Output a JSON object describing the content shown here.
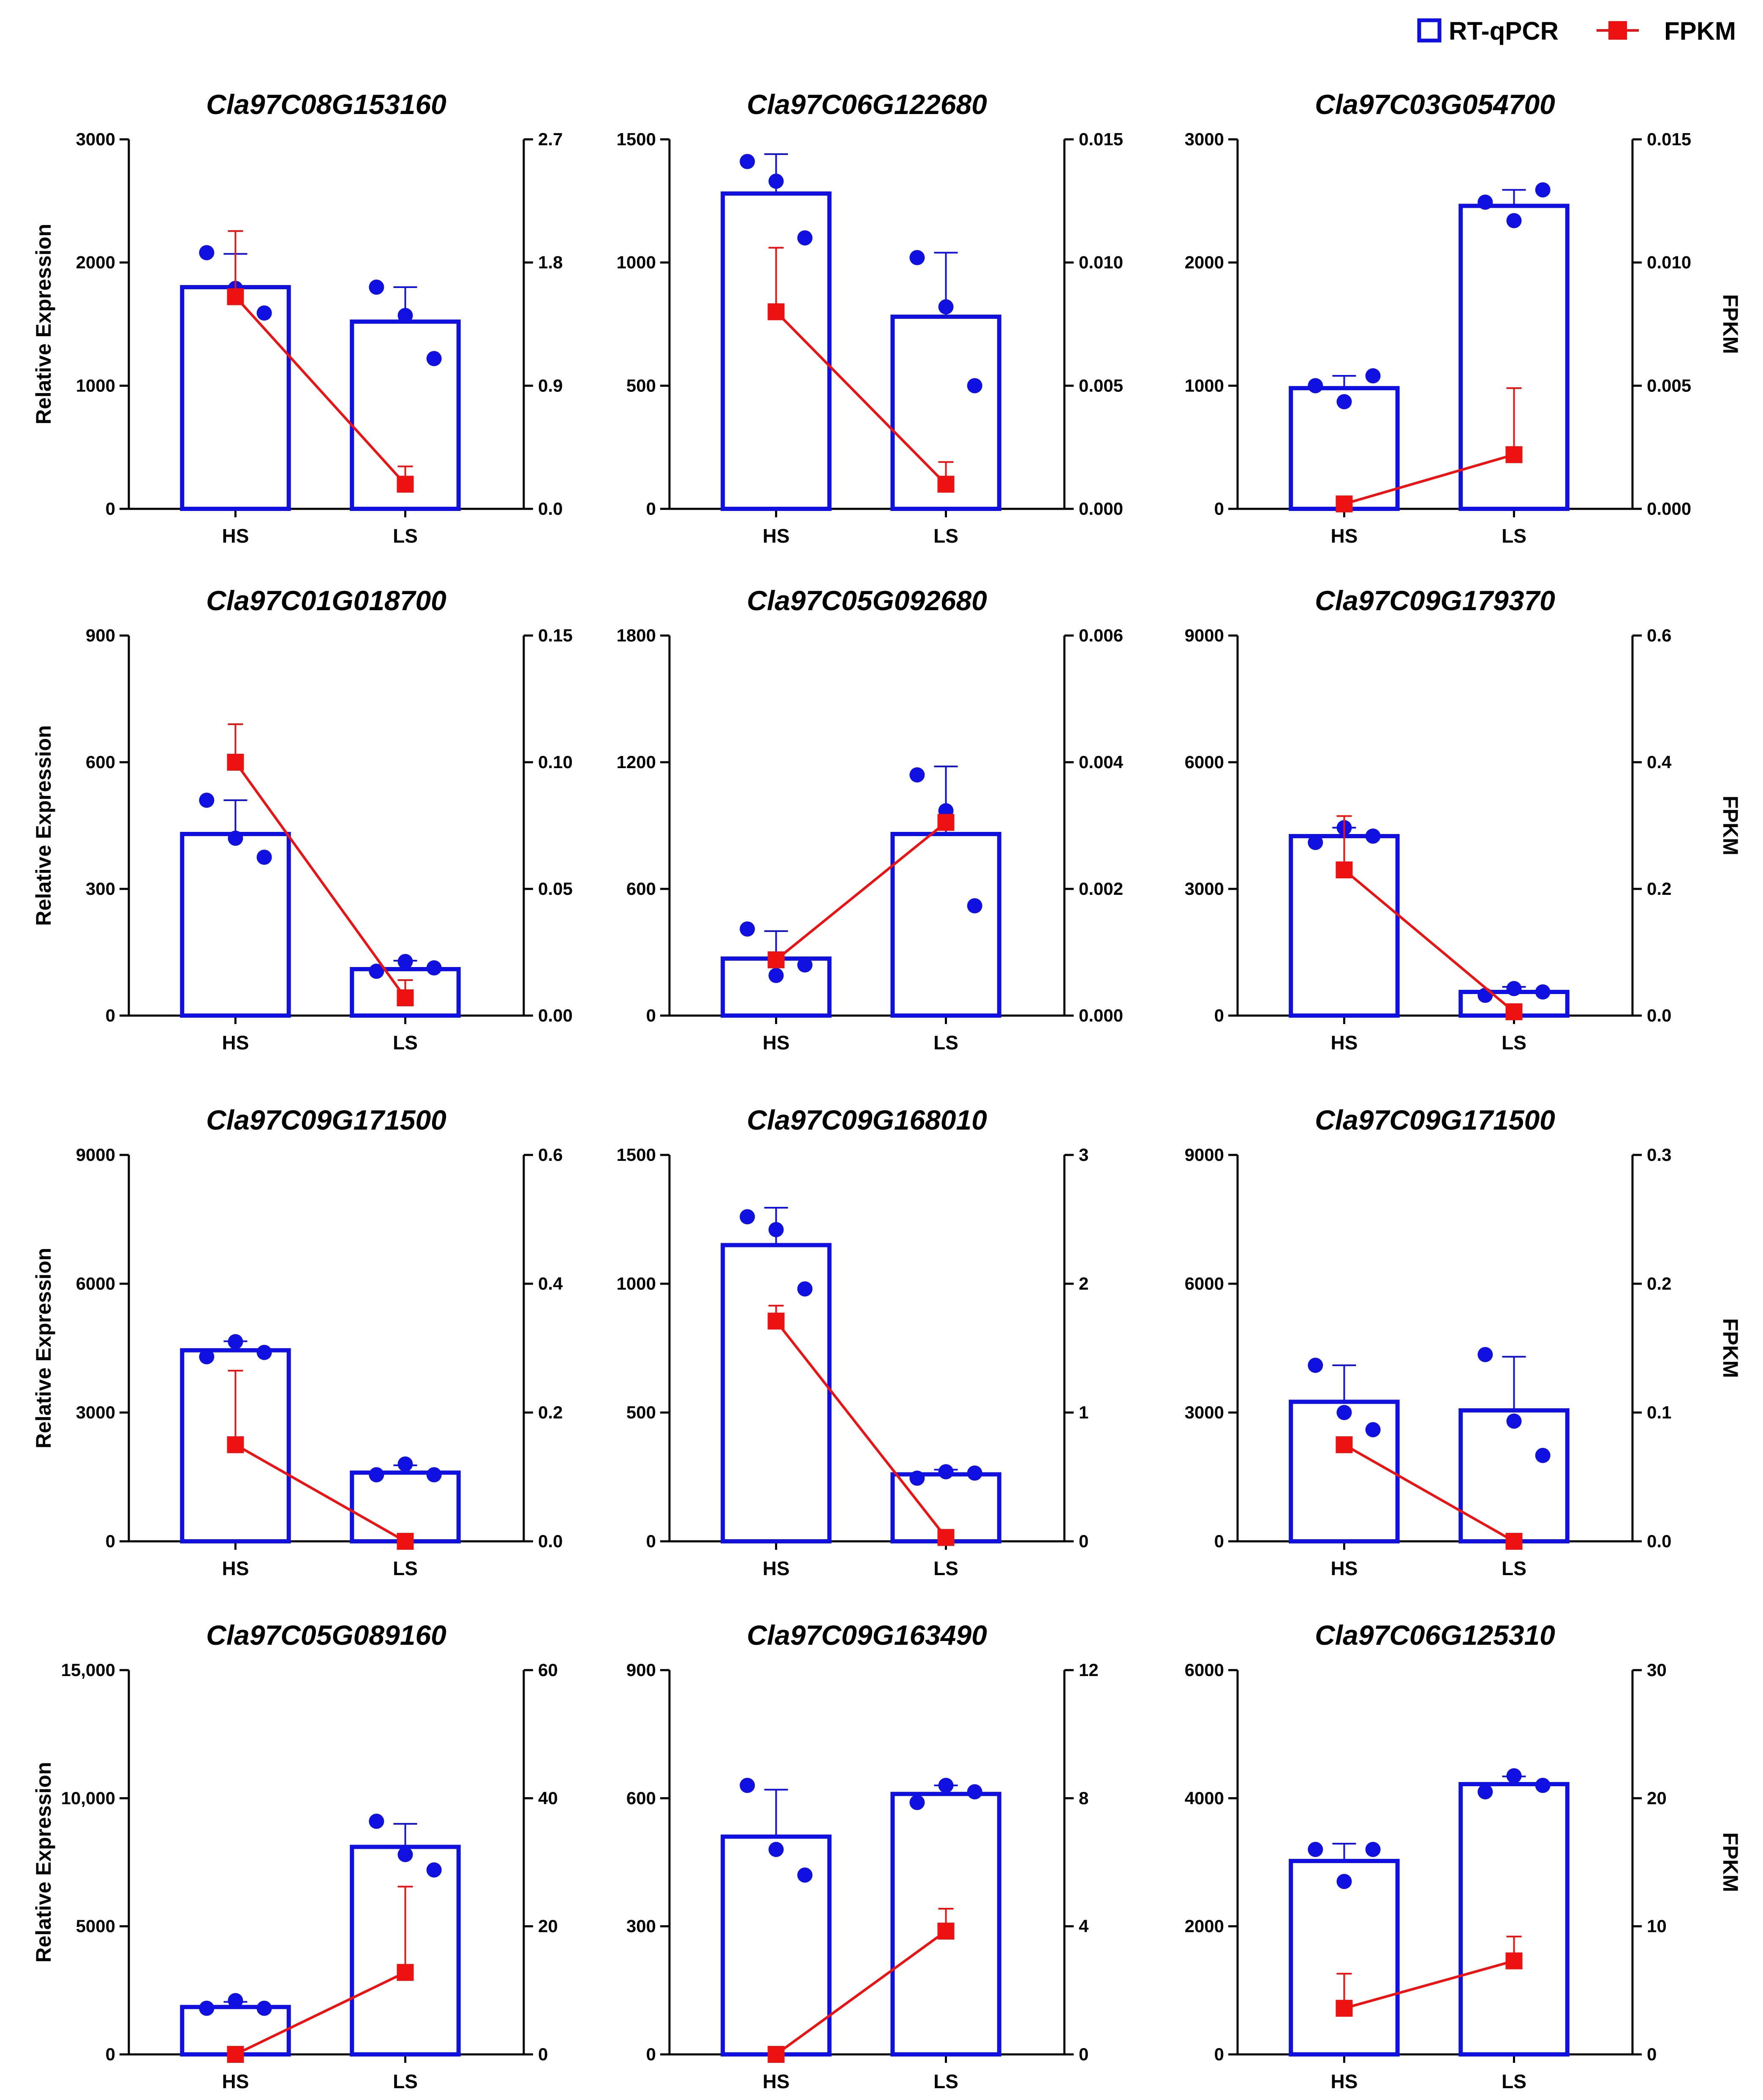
{
  "legend": {
    "rt_label": "RT-qPCR",
    "fpkm_label": "FPKM"
  },
  "colors": {
    "bar": "#1010e0",
    "line": "#ee1111",
    "axis": "#000000"
  },
  "chart_data": [
    {
      "type": "bar",
      "title": "Cla97C08G153160",
      "categories": [
        "HS",
        "LS"
      ],
      "ylabel": "Relative Expression",
      "y2label": "",
      "ylim": [
        0,
        3000
      ],
      "yticks": [
        "0",
        "1000",
        "2000",
        "3000"
      ],
      "y2lim": [
        0,
        2.7
      ],
      "y2ticks": [
        "0.0",
        "0.9",
        "1.8",
        "2.7"
      ],
      "series": [
        {
          "name": "RT-qPCR",
          "values": [
            1800,
            1520
          ],
          "err": [
            270,
            280
          ],
          "points": [
            [
              2080,
              1790,
              1590
            ],
            [
              1800,
              1570,
              1220
            ]
          ]
        },
        {
          "name": "FPKM",
          "values": [
            1.55,
            0.18
          ],
          "err": [
            0.48,
            0.13
          ]
        }
      ]
    },
    {
      "type": "bar",
      "title": "Cla97C06G122680",
      "categories": [
        "HS",
        "LS"
      ],
      "ylabel": "",
      "y2label": "",
      "ylim": [
        0,
        1500
      ],
      "yticks": [
        "0",
        "500",
        "1000",
        "1500"
      ],
      "y2lim": [
        0,
        0.015
      ],
      "y2ticks": [
        "0.000",
        "0.005",
        "0.010",
        "0.015"
      ],
      "series": [
        {
          "name": "RT-qPCR",
          "values": [
            1280,
            780
          ],
          "err": [
            160,
            260
          ],
          "points": [
            [
              1410,
              1330,
              1100
            ],
            [
              1020,
              820,
              500
            ]
          ]
        },
        {
          "name": "FPKM",
          "values": [
            0.008,
            0.001
          ],
          "err": [
            0.0026,
            0.0009
          ]
        }
      ]
    },
    {
      "type": "bar",
      "title": "Cla97C03G054700",
      "categories": [
        "HS",
        "LS"
      ],
      "ylabel": "",
      "y2label": "FPKM",
      "ylim": [
        0,
        3000
      ],
      "yticks": [
        "0",
        "1000",
        "2000",
        "3000"
      ],
      "y2lim": [
        0,
        0.015
      ],
      "y2ticks": [
        "0.000",
        "0.005",
        "0.010",
        "0.015"
      ],
      "series": [
        {
          "name": "RT-qPCR",
          "values": [
            980,
            2460
          ],
          "err": [
            100,
            130
          ],
          "points": [
            [
              1000,
              870,
              1080
            ],
            [
              2490,
              2340,
              2590
            ]
          ]
        },
        {
          "name": "FPKM",
          "values": [
            0.0002,
            0.0022
          ],
          "err": [
            0.0003,
            0.0027
          ]
        }
      ]
    },
    {
      "type": "bar",
      "title": "Cla97C01G018700",
      "categories": [
        "HS",
        "LS"
      ],
      "ylabel": "Relative Expression",
      "y2label": "",
      "ylim": [
        0,
        900
      ],
      "yticks": [
        "0",
        "300",
        "600",
        "900"
      ],
      "y2lim": [
        0,
        0.15
      ],
      "y2ticks": [
        "0.00",
        "0.05",
        "0.10",
        "0.15"
      ],
      "series": [
        {
          "name": "RT-qPCR",
          "values": [
            430,
            110
          ],
          "err": [
            80,
            20
          ],
          "points": [
            [
              510,
              420,
              375
            ],
            [
              105,
              128,
              113
            ]
          ]
        },
        {
          "name": "FPKM",
          "values": [
            0.1,
            0.007
          ],
          "err": [
            0.015,
            0.007
          ]
        }
      ]
    },
    {
      "type": "bar",
      "title": "Cla97C05G092680",
      "categories": [
        "HS",
        "LS"
      ],
      "ylabel": "",
      "y2label": "",
      "ylim": [
        0,
        1800
      ],
      "yticks": [
        "0",
        "600",
        "1200",
        "1800"
      ],
      "y2lim": [
        0,
        0.006
      ],
      "y2ticks": [
        "0.000",
        "0.002",
        "0.004",
        "0.006"
      ],
      "series": [
        {
          "name": "RT-qPCR",
          "values": [
            270,
            860
          ],
          "err": [
            130,
            320
          ],
          "points": [
            [
              410,
              190,
              240
            ],
            [
              1140,
              970,
              520
            ]
          ]
        },
        {
          "name": "FPKM",
          "values": [
            0.00088,
            0.00305
          ],
          "err": [
            0.0001,
            0.0001
          ]
        }
      ]
    },
    {
      "type": "bar",
      "title": "Cla97C09G179370",
      "categories": [
        "HS",
        "LS"
      ],
      "ylabel": "",
      "y2label": "FPKM",
      "ylim": [
        0,
        9000
      ],
      "yticks": [
        "0",
        "3000",
        "6000",
        "9000"
      ],
      "y2lim": [
        0,
        0.6
      ],
      "y2ticks": [
        "0.0",
        "0.2",
        "0.4",
        "0.6"
      ],
      "series": [
        {
          "name": "RT-qPCR",
          "values": [
            4250,
            560
          ],
          "err": [
            200,
            120
          ],
          "points": [
            [
              4100,
              4450,
              4250
            ],
            [
              480,
              640,
              560
            ]
          ]
        },
        {
          "name": "FPKM",
          "values": [
            0.23,
            0.006
          ],
          "err": [
            0.085,
            0.003
          ]
        }
      ]
    },
    {
      "type": "bar",
      "title": "Cla97C09G171500",
      "categories": [
        "HS",
        "LS"
      ],
      "ylabel": "Relative Expression",
      "y2label": "",
      "ylim": [
        0,
        9000
      ],
      "yticks": [
        "0",
        "3000",
        "6000",
        "9000"
      ],
      "y2lim": [
        0,
        0.6
      ],
      "y2ticks": [
        "0.0",
        "0.2",
        "0.4",
        "0.6"
      ],
      "series": [
        {
          "name": "RT-qPCR",
          "values": [
            4450,
            1600
          ],
          "err": [
            210,
            170
          ],
          "points": [
            [
              4300,
              4650,
              4400
            ],
            [
              1550,
              1800,
              1550
            ]
          ]
        },
        {
          "name": "FPKM",
          "values": [
            0.15,
            0.0
          ],
          "err": [
            0.115,
            0.0
          ]
        }
      ]
    },
    {
      "type": "bar",
      "title": "Cla97C09G168010",
      "categories": [
        "HS",
        "LS"
      ],
      "ylabel": "",
      "y2label": "",
      "ylim": [
        0,
        1500
      ],
      "yticks": [
        "0",
        "500",
        "1000",
        "1500"
      ],
      "y2lim": [
        0,
        3
      ],
      "y2ticks": [
        "0",
        "1",
        "2",
        "3"
      ],
      "series": [
        {
          "name": "RT-qPCR",
          "values": [
            1150,
            260
          ],
          "err": [
            145,
            18
          ],
          "points": [
            [
              1260,
              1210,
              980
            ],
            [
              245,
              270,
              265
            ]
          ]
        },
        {
          "name": "FPKM",
          "values": [
            1.71,
            0.03
          ],
          "err": [
            0.12,
            0.02
          ]
        }
      ]
    },
    {
      "type": "bar",
      "title": "Cla97C09G171500",
      "categories": [
        "HS",
        "LS"
      ],
      "ylabel": "",
      "y2label": "FPKM",
      "ylim": [
        0,
        9000
      ],
      "yticks": [
        "0",
        "3000",
        "6000",
        "9000"
      ],
      "y2lim": [
        0,
        0.3
      ],
      "y2ticks": [
        "0.0",
        "0.1",
        "0.2",
        "0.3"
      ],
      "series": [
        {
          "name": "RT-qPCR",
          "values": [
            3250,
            3050
          ],
          "err": [
            850,
            1250
          ],
          "points": [
            [
              4100,
              3000,
              2600
            ],
            [
              4350,
              2800,
              2000
            ]
          ]
        },
        {
          "name": "FPKM",
          "values": [
            0.075,
            0.0
          ],
          "err": [
            0.0,
            0.0
          ]
        }
      ]
    },
    {
      "type": "bar",
      "title": "Cla97C05G089160",
      "categories": [
        "HS",
        "LS"
      ],
      "ylabel": "Relative Expression",
      "y2label": "",
      "ylim": [
        0,
        15000
      ],
      "yticks": [
        "0",
        "5000",
        "10,000",
        "15,000"
      ],
      "y2lim": [
        0,
        60
      ],
      "y2ticks": [
        "0",
        "20",
        "40",
        "60"
      ],
      "series": [
        {
          "name": "RT-qPCR",
          "values": [
            1850,
            8100
          ],
          "err": [
            200,
            900
          ],
          "points": [
            [
              1800,
              2100,
              1800
            ],
            [
              9100,
              7800,
              7200
            ]
          ]
        },
        {
          "name": "FPKM",
          "values": [
            0.0,
            12.8
          ],
          "err": [
            0.0,
            13.4
          ]
        }
      ]
    },
    {
      "type": "bar",
      "title": "Cla97C09G163490",
      "categories": [
        "HS",
        "LS"
      ],
      "ylabel": "",
      "y2label": "",
      "ylim": [
        0,
        900
      ],
      "yticks": [
        "0",
        "300",
        "600",
        "900"
      ],
      "y2lim": [
        0,
        12
      ],
      "y2ticks": [
        "0",
        "4",
        "8",
        "12"
      ],
      "series": [
        {
          "name": "RT-qPCR",
          "values": [
            510,
            610
          ],
          "err": [
            110,
            20
          ],
          "points": [
            [
              630,
              480,
              420
            ],
            [
              590,
              630,
              615
            ]
          ]
        },
        {
          "name": "FPKM",
          "values": [
            0.0,
            3.85
          ],
          "err": [
            0.0,
            0.7
          ]
        }
      ]
    },
    {
      "type": "bar",
      "title": "Cla97C06G125310",
      "categories": [
        "HS",
        "LS"
      ],
      "ylabel": "",
      "y2label": "FPKM",
      "ylim": [
        0,
        6000
      ],
      "yticks": [
        "0",
        "2000",
        "4000",
        "6000"
      ],
      "y2lim": [
        0,
        30
      ],
      "y2ticks": [
        "0",
        "10",
        "20",
        "30"
      ],
      "series": [
        {
          "name": "RT-qPCR",
          "values": [
            3020,
            4220
          ],
          "err": [
            270,
            120
          ],
          "points": [
            [
              3200,
              2700,
              3200
            ],
            [
              4100,
              4350,
              4200
            ]
          ]
        },
        {
          "name": "FPKM",
          "values": [
            3.6,
            7.3
          ],
          "err": [
            2.7,
            1.9
          ]
        }
      ]
    }
  ]
}
